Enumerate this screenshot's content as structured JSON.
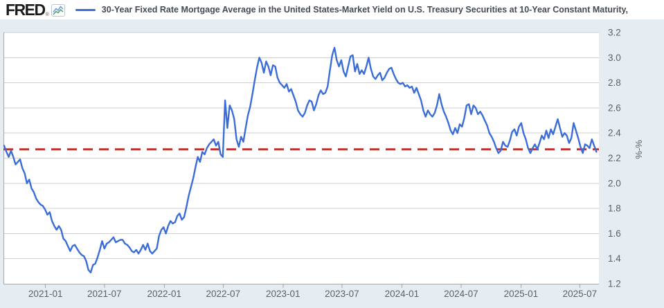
{
  "header": {
    "logo_text": "FRED",
    "registered_mark": "®",
    "series_title": "30-Year Fixed Rate Mortgage Average in the United States-Market Yield on U.S. Treasury Securities at 10-Year Constant Maturity,"
  },
  "colors": {
    "background": "#e5edf3",
    "plot_background": "#ffffff",
    "grid": "#cfcfcf",
    "axis": "#a8a8a8",
    "axis_label": "#5a6066",
    "title_text": "#444b55",
    "logo_text": "#1b1b1b",
    "series_line": "#3a6dd8",
    "reference_line": "#bf3330"
  },
  "chart_data": {
    "type": "line",
    "title": "30-Year Fixed Rate Mortgage Average in the United States-Market Yield on U.S. Treasury Securities at 10-Year Constant Maturity,",
    "xlabel": "",
    "ylabel": "%-%",
    "ylim": [
      1.2,
      3.2
    ],
    "y_tick_step": 0.2,
    "y_tick_labels": [
      "3.2",
      "3.0",
      "2.8",
      "2.6",
      "2.4",
      "2.2",
      "2.0",
      "1.8",
      "1.6",
      "1.4",
      "1.2"
    ],
    "grid": true,
    "legend_position": "top",
    "x_ticks": [
      {
        "label": "2021-01",
        "date": "2021-01-01"
      },
      {
        "label": "2021-07",
        "date": "2021-07-01"
      },
      {
        "label": "2022-01",
        "date": "2022-01-01"
      },
      {
        "label": "2022-07",
        "date": "2022-07-01"
      },
      {
        "label": "2023-01",
        "date": "2023-01-01"
      },
      {
        "label": "2023-07",
        "date": "2023-07-01"
      },
      {
        "label": "2024-01",
        "date": "2024-01-01"
      },
      {
        "label": "2024-07",
        "date": "2024-07-01"
      },
      {
        "label": "2025-01",
        "date": "2025-01-01"
      },
      {
        "label": "2025-07",
        "date": "2025-07-01"
      }
    ],
    "reference_line": {
      "value": 2.27,
      "style": "dashed",
      "color": "#bf3330"
    },
    "series": [
      {
        "name": "30-Year Fixed Rate Mortgage Average in the United States-Market Yield on U.S. Treasury Securities at 10-Year Constant Maturity",
        "unit": "%-%",
        "color": "#3a6dd8",
        "frequency": "weekly",
        "start_date": "2020-08-27",
        "interval_days": 7,
        "values": [
          2.3,
          2.25,
          2.21,
          2.26,
          2.21,
          2.15,
          2.17,
          2.19,
          2.12,
          2.08,
          2.0,
          2.03,
          1.96,
          1.93,
          1.88,
          1.85,
          1.83,
          1.82,
          1.79,
          1.75,
          1.77,
          1.7,
          1.66,
          1.63,
          1.66,
          1.63,
          1.56,
          1.54,
          1.5,
          1.46,
          1.5,
          1.51,
          1.48,
          1.45,
          1.43,
          1.42,
          1.38,
          1.31,
          1.29,
          1.35,
          1.36,
          1.41,
          1.47,
          1.54,
          1.48,
          1.52,
          1.53,
          1.55,
          1.57,
          1.53,
          1.54,
          1.55,
          1.55,
          1.52,
          1.51,
          1.49,
          1.46,
          1.45,
          1.47,
          1.44,
          1.47,
          1.51,
          1.47,
          1.52,
          1.46,
          1.44,
          1.46,
          1.48,
          1.58,
          1.63,
          1.65,
          1.6,
          1.66,
          1.7,
          1.68,
          1.69,
          1.74,
          1.76,
          1.71,
          1.73,
          1.81,
          1.9,
          1.97,
          2.04,
          2.13,
          2.21,
          2.17,
          2.25,
          2.23,
          2.28,
          2.31,
          2.33,
          2.35,
          2.3,
          2.33,
          2.23,
          2.21,
          2.66,
          2.44,
          2.62,
          2.58,
          2.51,
          2.35,
          2.29,
          2.37,
          2.33,
          2.44,
          2.54,
          2.61,
          2.71,
          2.82,
          2.92,
          3.0,
          2.96,
          2.88,
          2.97,
          2.93,
          2.86,
          2.94,
          2.93,
          2.84,
          2.8,
          2.78,
          2.76,
          2.79,
          2.73,
          2.75,
          2.7,
          2.65,
          2.58,
          2.55,
          2.53,
          2.56,
          2.62,
          2.66,
          2.65,
          2.58,
          2.63,
          2.7,
          2.74,
          2.71,
          2.72,
          2.77,
          2.9,
          3.02,
          3.08,
          2.98,
          2.93,
          2.98,
          2.89,
          2.85,
          2.93,
          3.01,
          3.02,
          2.89,
          2.95,
          2.87,
          2.9,
          2.87,
          2.93,
          3.0,
          2.91,
          2.85,
          2.83,
          2.86,
          2.88,
          2.82,
          2.84,
          2.88,
          2.91,
          2.92,
          2.87,
          2.83,
          2.8,
          2.79,
          2.8,
          2.77,
          2.78,
          2.76,
          2.77,
          2.72,
          2.76,
          2.71,
          2.66,
          2.58,
          2.53,
          2.58,
          2.55,
          2.53,
          2.56,
          2.62,
          2.71,
          2.63,
          2.57,
          2.53,
          2.48,
          2.42,
          2.39,
          2.44,
          2.4,
          2.47,
          2.45,
          2.52,
          2.62,
          2.63,
          2.55,
          2.62,
          2.6,
          2.55,
          2.57,
          2.54,
          2.5,
          2.46,
          2.4,
          2.37,
          2.33,
          2.28,
          2.24,
          2.26,
          2.33,
          2.3,
          2.29,
          2.34,
          2.41,
          2.43,
          2.38,
          2.45,
          2.48,
          2.4,
          2.35,
          2.28,
          2.24,
          2.28,
          2.31,
          2.27,
          2.32,
          2.38,
          2.35,
          2.42,
          2.36,
          2.43,
          2.39,
          2.45,
          2.51,
          2.44,
          2.37,
          2.4,
          2.38,
          2.32,
          2.36,
          2.48,
          2.42,
          2.36,
          2.29,
          2.24,
          2.31,
          2.3,
          2.28,
          2.35,
          2.3,
          2.25
        ]
      }
    ]
  }
}
